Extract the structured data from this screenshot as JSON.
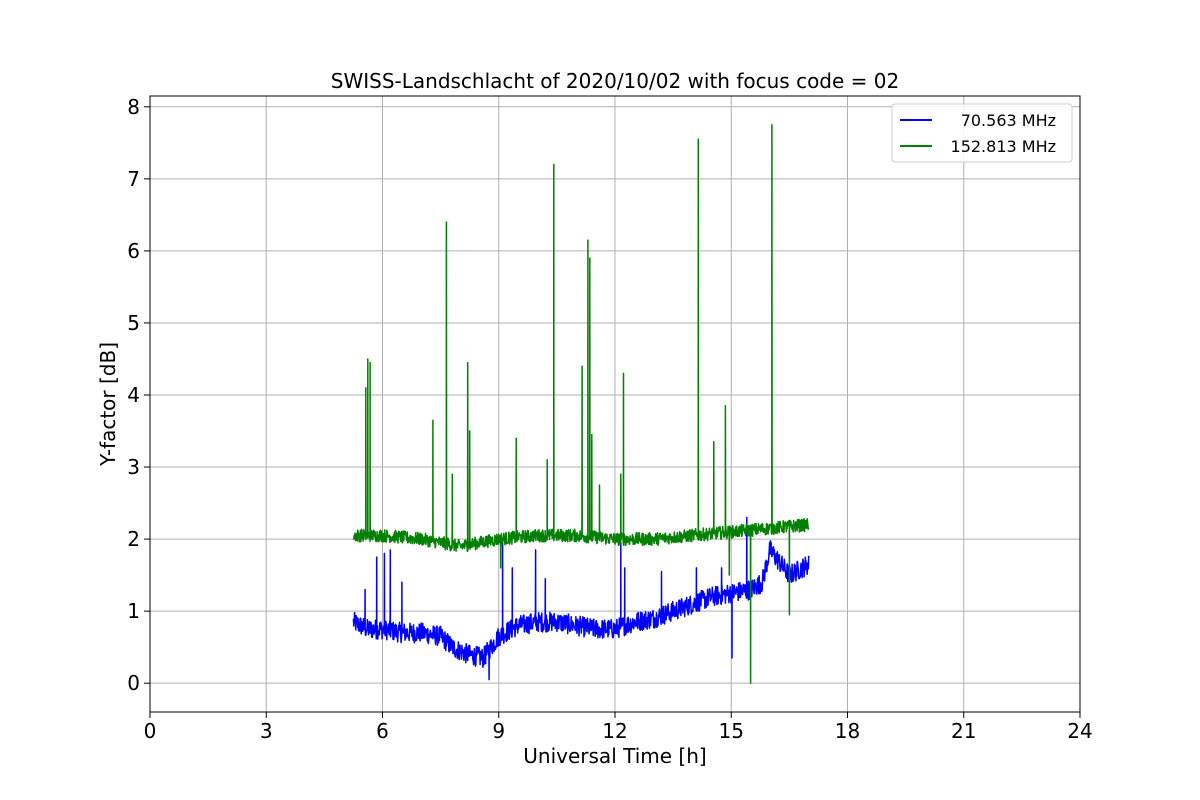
{
  "chart_data": {
    "type": "line",
    "title": "SWISS-Landschlacht of 2020/10/02 with focus code = 02",
    "xlabel": "Universal Time [h]",
    "ylabel": "Y-factor [dB]",
    "xlim": [
      0,
      24
    ],
    "ylim": [
      -0.4,
      8.15
    ],
    "xticks": [
      0,
      3,
      6,
      9,
      12,
      15,
      18,
      21,
      24
    ],
    "yticks": [
      0,
      1,
      2,
      3,
      4,
      5,
      6,
      7,
      8
    ],
    "grid": true,
    "legend_position": "top-right",
    "series": [
      {
        "name": "70.563 MHz",
        "color": "#0000ff",
        "x_range": [
          5.25,
          17.0
        ],
        "baseline": [
          [
            5.25,
            0.85
          ],
          [
            5.6,
            0.75
          ],
          [
            6.0,
            0.75
          ],
          [
            6.5,
            0.7
          ],
          [
            7.0,
            0.7
          ],
          [
            7.5,
            0.65
          ],
          [
            7.8,
            0.5
          ],
          [
            8.2,
            0.4
          ],
          [
            8.6,
            0.35
          ],
          [
            9.0,
            0.65
          ],
          [
            9.5,
            0.8
          ],
          [
            10.0,
            0.85
          ],
          [
            10.5,
            0.85
          ],
          [
            11.0,
            0.8
          ],
          [
            11.5,
            0.75
          ],
          [
            12.0,
            0.75
          ],
          [
            12.5,
            0.85
          ],
          [
            13.0,
            0.9
          ],
          [
            13.5,
            1.0
          ],
          [
            14.0,
            1.1
          ],
          [
            14.5,
            1.2
          ],
          [
            15.0,
            1.25
          ],
          [
            15.5,
            1.3
          ],
          [
            15.8,
            1.4
          ],
          [
            16.0,
            1.85
          ],
          [
            16.5,
            1.5
          ],
          [
            17.0,
            1.65
          ]
        ],
        "spikes": [
          [
            5.55,
            1.3
          ],
          [
            5.85,
            1.75
          ],
          [
            6.05,
            1.8
          ],
          [
            6.2,
            1.85
          ],
          [
            6.5,
            1.4
          ],
          [
            8.75,
            0.05
          ],
          [
            9.1,
            2.0
          ],
          [
            9.35,
            1.6
          ],
          [
            9.95,
            1.85
          ],
          [
            10.2,
            1.45
          ],
          [
            12.15,
            1.95
          ],
          [
            12.25,
            1.6
          ],
          [
            13.2,
            1.55
          ],
          [
            14.1,
            1.6
          ],
          [
            14.75,
            1.6
          ],
          [
            15.02,
            0.35
          ],
          [
            15.4,
            2.3
          ]
        ]
      },
      {
        "name": "152.813 MHz",
        "color": "#008000",
        "x_range": [
          5.25,
          17.0
        ],
        "baseline": [
          [
            5.25,
            2.05
          ],
          [
            6.0,
            2.05
          ],
          [
            7.0,
            2.0
          ],
          [
            8.0,
            1.9
          ],
          [
            8.5,
            1.95
          ],
          [
            9.0,
            2.0
          ],
          [
            10.0,
            2.05
          ],
          [
            11.0,
            2.05
          ],
          [
            12.0,
            2.0
          ],
          [
            13.0,
            2.0
          ],
          [
            14.0,
            2.05
          ],
          [
            15.0,
            2.1
          ],
          [
            16.0,
            2.15
          ],
          [
            17.0,
            2.2
          ]
        ],
        "spikes": [
          [
            5.57,
            4.1
          ],
          [
            5.62,
            4.5
          ],
          [
            5.68,
            4.45
          ],
          [
            7.3,
            3.65
          ],
          [
            7.65,
            6.4
          ],
          [
            7.8,
            2.9
          ],
          [
            8.2,
            4.45
          ],
          [
            8.25,
            3.5
          ],
          [
            9.05,
            1.6
          ],
          [
            9.45,
            3.4
          ],
          [
            10.25,
            3.1
          ],
          [
            10.42,
            7.2
          ],
          [
            11.15,
            4.4
          ],
          [
            11.3,
            6.15
          ],
          [
            11.35,
            5.9
          ],
          [
            11.4,
            3.45
          ],
          [
            11.6,
            2.75
          ],
          [
            12.15,
            2.9
          ],
          [
            12.22,
            4.3
          ],
          [
            14.15,
            7.55
          ],
          [
            14.55,
            3.35
          ],
          [
            14.85,
            3.85
          ],
          [
            14.95,
            1.5
          ],
          [
            15.5,
            0.0
          ],
          [
            16.05,
            7.75
          ],
          [
            16.5,
            0.95
          ]
        ]
      }
    ]
  }
}
